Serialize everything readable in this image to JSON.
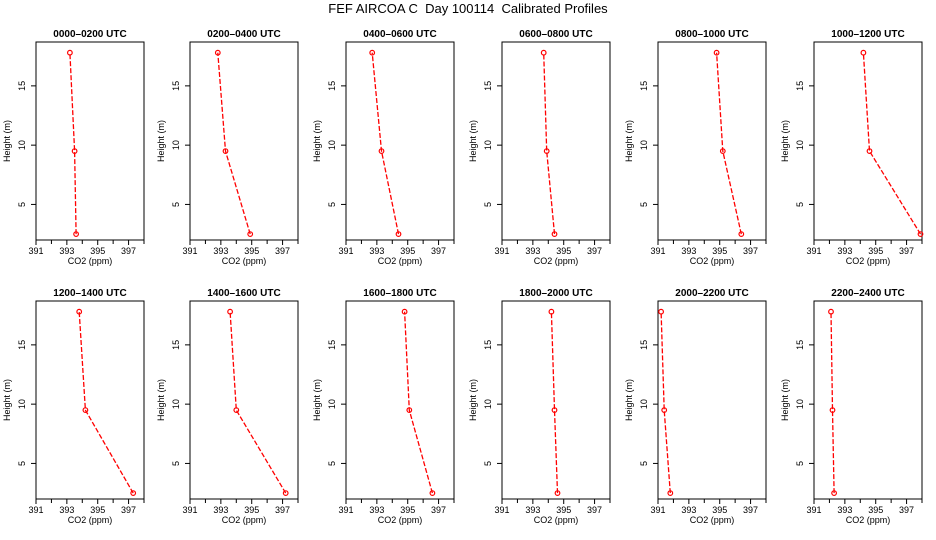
{
  "title": "FEF AIRCOA C  Day 100114  Calibrated Profiles",
  "chart_data": {
    "type": "line",
    "xlabel": "CO2 (ppm)",
    "ylabel": "Height (m)",
    "xlim": [
      391,
      398
    ],
    "ylim": [
      2,
      18.7
    ],
    "xticks": [
      391,
      393,
      395,
      397
    ],
    "yticks": [
      5,
      10,
      15
    ],
    "heights": [
      2.5,
      9.5,
      17.8
    ],
    "color": "#ff0000",
    "panels": [
      {
        "title": "0000–0200 UTC",
        "co2": [
          393.6,
          393.5,
          393.2
        ]
      },
      {
        "title": "0200–0400 UTC",
        "co2": [
          394.9,
          393.3,
          392.8
        ]
      },
      {
        "title": "0400–0600 UTC",
        "co2": [
          394.4,
          393.3,
          392.7
        ]
      },
      {
        "title": "0600–0800 UTC",
        "co2": [
          394.4,
          393.9,
          393.7
        ]
      },
      {
        "title": "0800–1000 UTC",
        "co2": [
          396.4,
          395.2,
          394.8
        ]
      },
      {
        "title": "1000–1200 UTC",
        "co2": [
          397.9,
          394.6,
          394.2
        ]
      },
      {
        "title": "1200–1400 UTC",
        "co2": [
          397.3,
          394.2,
          393.8
        ]
      },
      {
        "title": "1400–1600 UTC",
        "co2": [
          397.2,
          394.0,
          393.6
        ]
      },
      {
        "title": "1600–1800 UTC",
        "co2": [
          396.6,
          395.1,
          394.8
        ]
      },
      {
        "title": "1800–2000 UTC",
        "co2": [
          394.6,
          394.4,
          394.2
        ]
      },
      {
        "title": "2000–2200 UTC",
        "co2": [
          391.8,
          391.4,
          391.2
        ]
      },
      {
        "title": "2200–2400 UTC",
        "co2": [
          392.3,
          392.2,
          392.1
        ]
      }
    ]
  }
}
